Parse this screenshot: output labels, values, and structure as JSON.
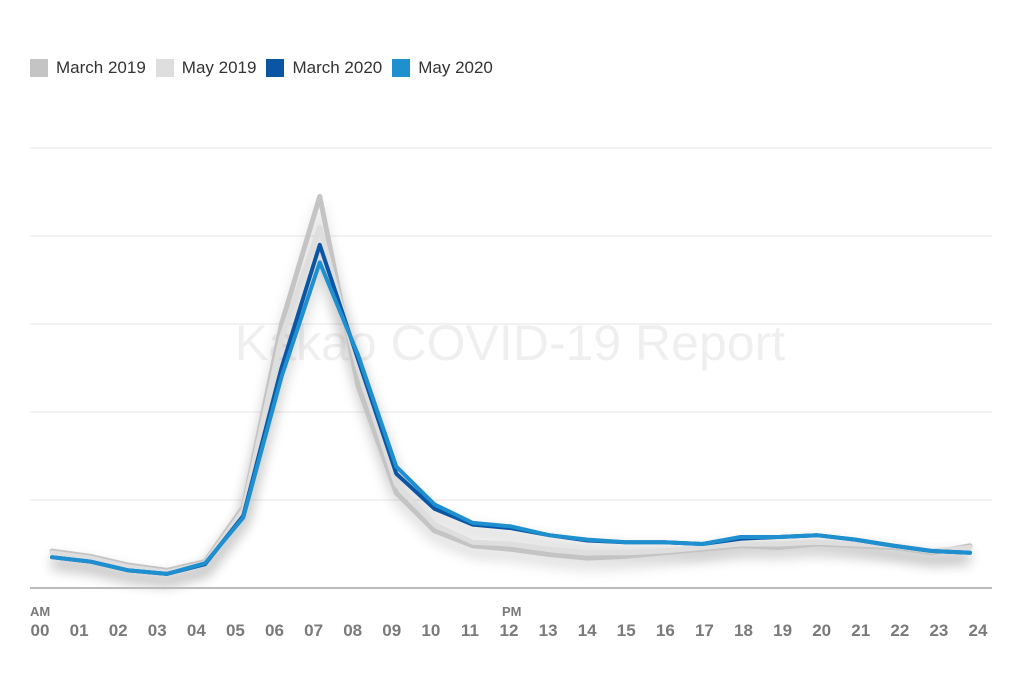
{
  "chart_data": {
    "type": "line",
    "title": "",
    "watermark": "Kakao COVID-19 Report",
    "xlabel": "",
    "ylabel": "",
    "period_labels": {
      "am": "AM",
      "pm": "PM"
    },
    "categories": [
      "00",
      "01",
      "02",
      "03",
      "04",
      "05",
      "06",
      "07",
      "08",
      "09",
      "10",
      "11",
      "12",
      "13",
      "14",
      "15",
      "16",
      "17",
      "18",
      "19",
      "20",
      "21",
      "22",
      "23",
      "24"
    ],
    "ylim": [
      0,
      5
    ],
    "grid": true,
    "legend_position": "top-left",
    "series": [
      {
        "name": "March 2019",
        "color": "#c4c4c4",
        "values": [
          0.42,
          0.36,
          0.26,
          0.2,
          0.3,
          0.92,
          3.0,
          4.45,
          2.3,
          1.08,
          0.65,
          0.48,
          0.44,
          0.38,
          0.34,
          0.36,
          0.4,
          0.44,
          0.48,
          0.46,
          0.5,
          0.48,
          0.46,
          0.4,
          0.48
        ]
      },
      {
        "name": "May 2019",
        "color": "#dedede",
        "values": [
          0.4,
          0.34,
          0.24,
          0.18,
          0.28,
          0.88,
          2.85,
          4.1,
          2.5,
          1.18,
          0.72,
          0.52,
          0.5,
          0.44,
          0.4,
          0.4,
          0.42,
          0.46,
          0.5,
          0.5,
          0.52,
          0.5,
          0.48,
          0.42,
          0.46
        ]
      },
      {
        "name": "March 2020",
        "color": "#0b56a4",
        "values": [
          0.35,
          0.3,
          0.2,
          0.16,
          0.27,
          0.82,
          2.5,
          3.9,
          2.6,
          1.3,
          0.9,
          0.72,
          0.68,
          0.6,
          0.54,
          0.52,
          0.52,
          0.5,
          0.56,
          0.58,
          0.6,
          0.55,
          0.48,
          0.42,
          0.4
        ]
      },
      {
        "name": "May 2020",
        "color": "#1e8fcf",
        "values": [
          0.35,
          0.3,
          0.2,
          0.16,
          0.28,
          0.8,
          2.4,
          3.7,
          2.65,
          1.38,
          0.95,
          0.74,
          0.7,
          0.6,
          0.55,
          0.52,
          0.52,
          0.5,
          0.58,
          0.58,
          0.6,
          0.55,
          0.48,
          0.42,
          0.4
        ]
      }
    ]
  }
}
